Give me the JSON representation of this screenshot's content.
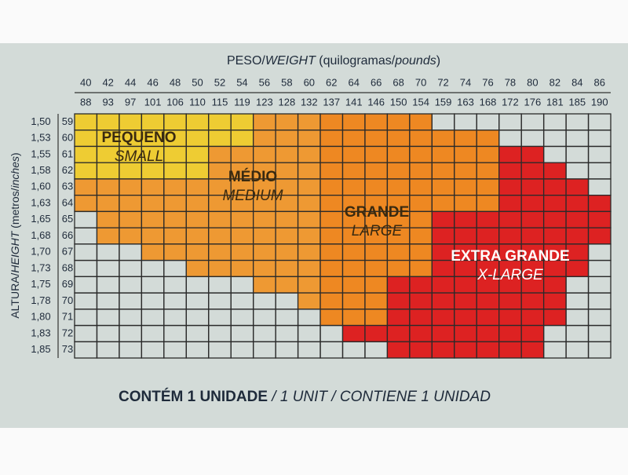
{
  "header": {
    "title": [
      {
        "text": "PESO/",
        "italic": false
      },
      {
        "text": "WEIGHT",
        "italic": true
      },
      {
        "text": " (quilogramas/",
        "italic": false
      },
      {
        "text": "pounds",
        "italic": true
      },
      {
        "text": ")",
        "italic": false
      }
    ],
    "kilograms": [
      "40",
      "42",
      "44",
      "46",
      "48",
      "50",
      "52",
      "54",
      "56",
      "58",
      "60",
      "62",
      "64",
      "66",
      "68",
      "70",
      "72",
      "74",
      "76",
      "78",
      "80",
      "82",
      "84",
      "86"
    ],
    "pounds": [
      "88",
      "93",
      "97",
      "101",
      "106",
      "110",
      "115",
      "119",
      "123",
      "128",
      "132",
      "137",
      "141",
      "146",
      "150",
      "154",
      "159",
      "163",
      "168",
      "172",
      "176",
      "181",
      "185",
      "190"
    ]
  },
  "side": {
    "title": [
      {
        "text": "ALTURA/",
        "italic": false
      },
      {
        "text": "HEIGHT",
        "italic": true
      },
      {
        "text": " (metros/",
        "italic": false
      },
      {
        "text": "inches",
        "italic": true
      },
      {
        "text": ")",
        "italic": false
      }
    ],
    "meters": [
      "1,50",
      "1,53",
      "1,55",
      "1,58",
      "1,60",
      "1,63",
      "1,65",
      "1,68",
      "1,70",
      "1,73",
      "1,75",
      "1,78",
      "1,80",
      "1,83",
      "1,85"
    ],
    "inches": [
      "59",
      "60",
      "61",
      "62",
      "63",
      "64",
      "65",
      "66",
      "67",
      "68",
      "69",
      "70",
      "71",
      "72",
      "73"
    ]
  },
  "sizes": [
    {
      "name": "PEQUENO",
      "alt": "SMALL",
      "color": "#3a2a10"
    },
    {
      "name": "MÉDIO",
      "alt": "MEDIUM",
      "color": "#3a2a10"
    },
    {
      "name": "GRANDE",
      "alt": "LARGE",
      "color": "#3a2a10"
    },
    {
      "name": "EXTRA GRANDE",
      "alt": "X-LARGE",
      "color": "#ffffff"
    }
  ],
  "grid": [
    [
      "#ec3",
      "#ec3",
      "#ec3",
      "#ec3",
      "#ec3",
      "#ec3",
      "#ec3",
      "#ec3",
      "#e93",
      "#e93",
      "#e93",
      "#e82",
      "#e82",
      "#e82",
      "#e82",
      "#e82",
      null,
      null,
      null,
      null,
      null,
      null,
      null,
      null
    ],
    [
      "#ec3",
      "#ec3",
      "#ec3",
      "#ec3",
      "#ec3",
      "#ec3",
      "#ec3",
      "#ec3",
      "#e93",
      "#e93",
      "#e93",
      "#e82",
      "#e82",
      "#e82",
      "#e82",
      "#e82",
      "#e82",
      "#e82",
      "#e82",
      null,
      null,
      null,
      null,
      null
    ],
    [
      "#ec3",
      "#ec3",
      "#ec3",
      "#ec3",
      "#ec3",
      "#ec3",
      "#e93",
      "#e93",
      "#e93",
      "#e93",
      "#e93",
      "#e82",
      "#e82",
      "#e82",
      "#e82",
      "#e82",
      "#e82",
      "#e82",
      "#e82",
      "#d22",
      "#d22",
      null,
      null,
      null
    ],
    [
      "#ec3",
      "#ec3",
      "#ec3",
      "#ec3",
      "#ec3",
      "#ec3",
      "#e93",
      "#e93",
      "#e93",
      "#e93",
      "#e93",
      "#e82",
      "#e82",
      "#e82",
      "#e82",
      "#e82",
      "#e82",
      "#e82",
      "#e82",
      "#d22",
      "#d22",
      "#d22",
      null,
      null
    ],
    [
      "#e93",
      "#e93",
      "#e93",
      "#e93",
      "#e93",
      "#e93",
      "#e93",
      "#e93",
      "#e93",
      "#e93",
      "#e93",
      "#e82",
      "#e82",
      "#e82",
      "#e82",
      "#e82",
      "#e82",
      "#e82",
      "#e82",
      "#d22",
      "#d22",
      "#d22",
      "#d22",
      null
    ],
    [
      "#e93",
      "#e93",
      "#e93",
      "#e93",
      "#e93",
      "#e93",
      "#e93",
      "#e93",
      "#e93",
      "#e93",
      "#e93",
      "#e82",
      "#e82",
      "#e82",
      "#e82",
      "#e82",
      "#e82",
      "#e82",
      "#e82",
      "#d22",
      "#d22",
      "#d22",
      "#d22",
      "#d22"
    ],
    [
      null,
      "#e93",
      "#e93",
      "#e93",
      "#e93",
      "#e93",
      "#e93",
      "#e93",
      "#e93",
      "#e93",
      "#e93",
      "#e82",
      "#e82",
      "#e82",
      "#e82",
      "#e82",
      "#d22",
      "#d22",
      "#d22",
      "#d22",
      "#d22",
      "#d22",
      "#d22",
      "#d22"
    ],
    [
      null,
      "#e93",
      "#e93",
      "#e93",
      "#e93",
      "#e93",
      "#e93",
      "#e93",
      "#e93",
      "#e93",
      "#e93",
      "#e82",
      "#e82",
      "#e82",
      "#e82",
      "#e82",
      "#d22",
      "#d22",
      "#d22",
      "#d22",
      "#d22",
      "#d22",
      "#d22",
      "#d22"
    ],
    [
      null,
      null,
      null,
      "#e93",
      "#e93",
      "#e93",
      "#e93",
      "#e93",
      "#e93",
      "#e93",
      "#e93",
      "#e82",
      "#e82",
      "#e82",
      "#e82",
      "#e82",
      "#d22",
      "#d22",
      "#d22",
      "#d22",
      "#d22",
      "#d22",
      "#d22",
      null
    ],
    [
      null,
      null,
      null,
      null,
      null,
      "#e93",
      "#e93",
      "#e93",
      "#e93",
      "#e93",
      "#e93",
      "#e82",
      "#e82",
      "#e82",
      "#e82",
      "#e82",
      "#d22",
      "#d22",
      "#d22",
      "#d22",
      "#d22",
      "#d22",
      "#d22",
      null
    ],
    [
      null,
      null,
      null,
      null,
      null,
      null,
      null,
      null,
      "#e93",
      "#e93",
      "#e93",
      "#e82",
      "#e82",
      "#e82",
      "#d22",
      "#d22",
      "#d22",
      "#d22",
      "#d22",
      "#d22",
      "#d22",
      "#d22",
      null,
      null
    ],
    [
      null,
      null,
      null,
      null,
      null,
      null,
      null,
      null,
      null,
      null,
      "#e93",
      "#e82",
      "#e82",
      "#e82",
      "#d22",
      "#d22",
      "#d22",
      "#d22",
      "#d22",
      "#d22",
      "#d22",
      "#d22",
      null,
      null
    ],
    [
      null,
      null,
      null,
      null,
      null,
      null,
      null,
      null,
      null,
      null,
      null,
      "#e82",
      "#e82",
      "#e82",
      "#d22",
      "#d22",
      "#d22",
      "#d22",
      "#d22",
      "#d22",
      "#d22",
      "#d22",
      null,
      null
    ],
    [
      null,
      null,
      null,
      null,
      null,
      null,
      null,
      null,
      null,
      null,
      null,
      null,
      "#d22",
      "#d22",
      "#d22",
      "#d22",
      "#d22",
      "#d22",
      "#d22",
      "#d22",
      "#d22",
      null,
      null,
      null
    ],
    [
      null,
      null,
      null,
      null,
      null,
      null,
      null,
      null,
      null,
      null,
      null,
      null,
      null,
      null,
      "#d22",
      "#d22",
      "#d22",
      "#d22",
      "#d22",
      "#d22",
      "#d22",
      null,
      null,
      null
    ]
  ],
  "footer": [
    {
      "text": "CONTÉM 1 UNIDADE",
      "italic": false
    },
    {
      "text": " / 1 UNIT / CONTIENE 1 UNIDAD",
      "italic": true
    }
  ]
}
